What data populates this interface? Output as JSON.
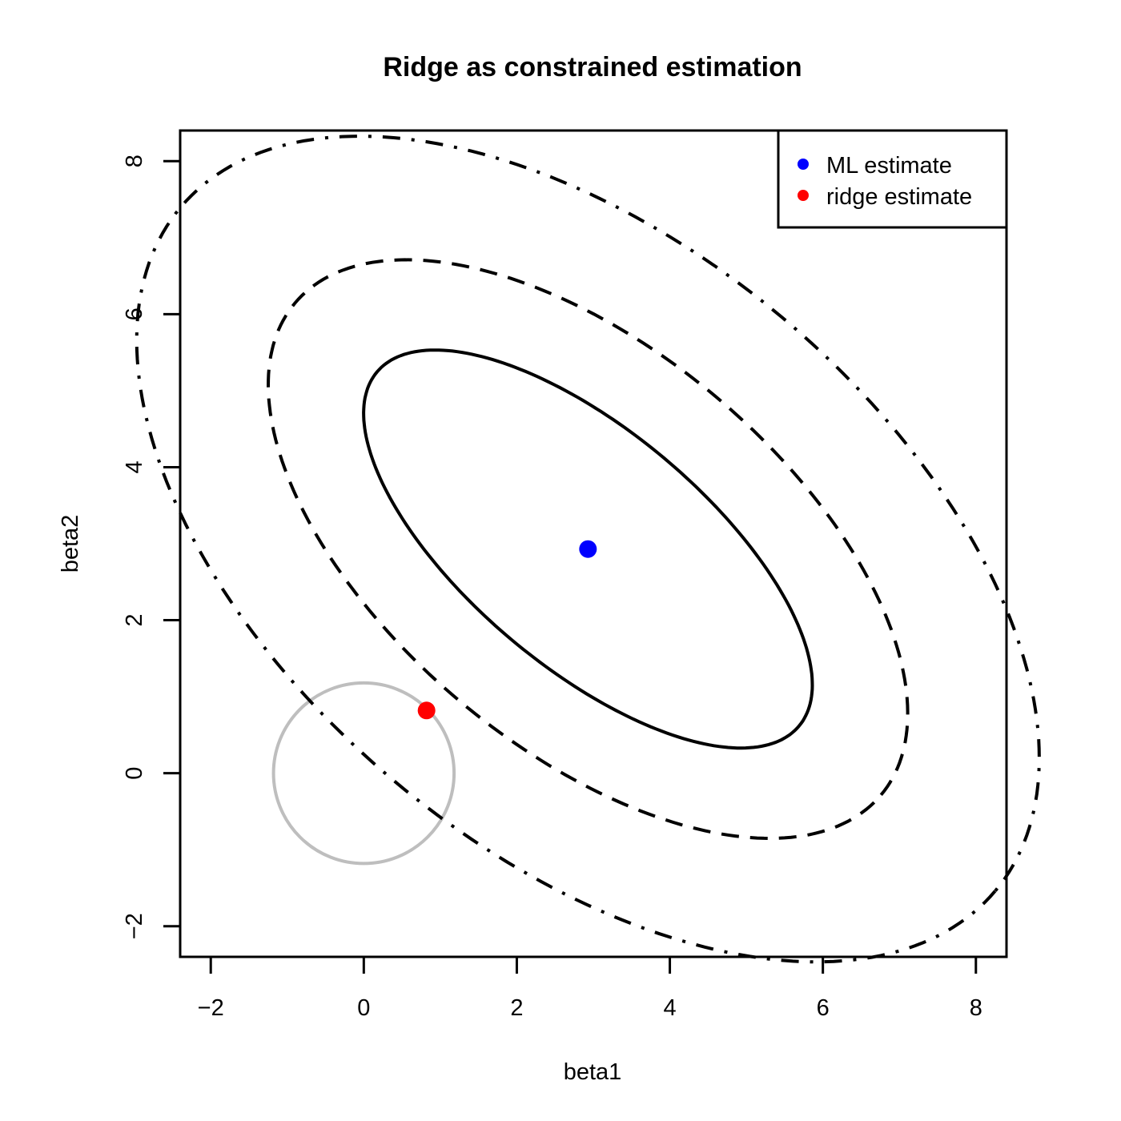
{
  "chart_data": {
    "type": "scatter",
    "title": "Ridge as constrained estimation",
    "xlabel": "beta1",
    "ylabel": "beta2",
    "xlim": [
      -2.4,
      8.4
    ],
    "ylim": [
      -2.4,
      8.4
    ],
    "x_ticks": [
      -2,
      0,
      2,
      4,
      6,
      8
    ],
    "y_ticks": [
      -2,
      0,
      2,
      4,
      6,
      8
    ],
    "x_tick_labels": [
      "−2",
      "0",
      "2",
      "4",
      "6",
      "8"
    ],
    "y_tick_labels": [
      "−2",
      "0",
      "2",
      "4",
      "6",
      "8"
    ],
    "grid": false,
    "legend_position": "top-right",
    "points": [
      {
        "name": "ML estimate",
        "x": 2.93,
        "y": 2.93,
        "color": "#0000ff"
      },
      {
        "name": "ridge estimate",
        "x": 0.82,
        "y": 0.82,
        "color": "#ff0000"
      }
    ],
    "constraint_circle": {
      "center": [
        0,
        0
      ],
      "radius": 1.18,
      "color": "#bebebe"
    },
    "contours": [
      {
        "style": "solid",
        "center": [
          2.93,
          2.93
        ],
        "semi_major": 3.6,
        "semi_minor": 1.55,
        "angle_deg": -40
      },
      {
        "style": "dashed",
        "center": [
          2.93,
          2.93
        ],
        "semi_major": 5.0,
        "semi_minor": 2.6,
        "angle_deg": -40
      },
      {
        "style": "dotdash",
        "center": [
          2.93,
          2.93
        ],
        "semi_major": 6.95,
        "semi_minor": 3.95,
        "angle_deg": -40
      }
    ],
    "colors": {
      "axis": "#000000",
      "contour": "#000000",
      "ml": "#0000ff",
      "ridge": "#ff0000",
      "circle": "#bebebe"
    }
  }
}
